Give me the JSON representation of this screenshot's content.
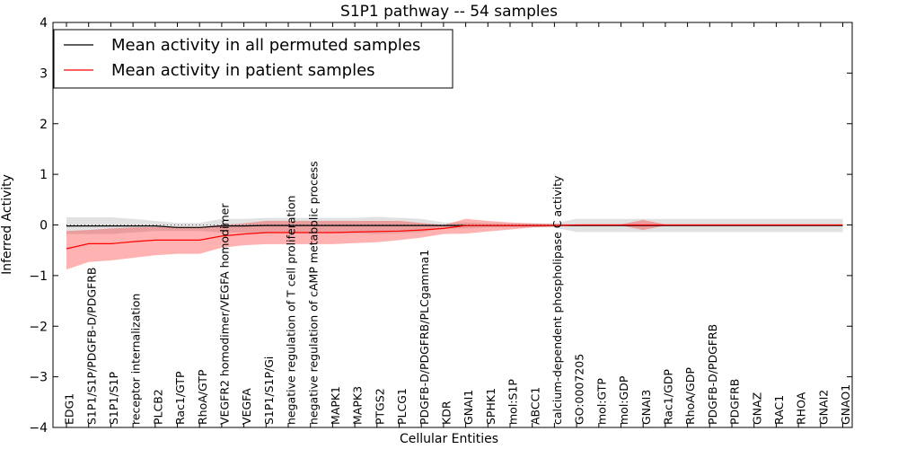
{
  "chart_data": {
    "type": "line",
    "title": "S1P1 pathway -- 54 samples",
    "xlabel": "Cellular Entities",
    "ylabel": "Inferred Activity",
    "ylim": [
      -4,
      4
    ],
    "yticks": [
      "4",
      "3",
      "2",
      "1",
      "0",
      "−1",
      "−2",
      "−3",
      "−4"
    ],
    "ytick_values": [
      4,
      3,
      2,
      1,
      0,
      -1,
      -2,
      -3,
      -4
    ],
    "grid": false,
    "legend_position": "top-left",
    "categories": [
      "EDG1",
      "S1P1/S1P/PDGFB-D/PDGFRB",
      "S1P1/S1P",
      "receptor internalization",
      "PLCB2",
      "Rac1/GTP",
      "RhoA/GTP",
      "VEGFR2 homodimer/VEGFA homodimer",
      "VEGFA",
      "S1P1/S1P/Gi",
      "negative regulation of T cell proliferation",
      "negative regulation of cAMP metabolic process",
      "MAPK1",
      "MAPK3",
      "PTGS2",
      "PLCG1",
      "PDGFB-D/PDGFRB/PLCgamma1",
      "KDR",
      "GNAI1",
      "SPHK1",
      "mol:S1P",
      "ABCC1",
      "calcium-dependent phospholipase C activity",
      "GO:0007205",
      "mol:GTP",
      "mol:GDP",
      "GNAI3",
      "Rac1/GDP",
      "RhoA/GDP",
      "PDGFB-D/PDGFRB",
      "PDGFRB",
      "GNAZ",
      "RAC1",
      "RHOA",
      "GNAI2",
      "GNAO1"
    ],
    "series": [
      {
        "name": "Mean activity in all permuted samples",
        "color": "#000000",
        "band_color": "#bdbdbd",
        "values": [
          -0.02,
          -0.02,
          -0.02,
          -0.02,
          -0.02,
          -0.05,
          -0.05,
          -0.02,
          -0.02,
          -0.01,
          -0.01,
          -0.01,
          -0.01,
          -0.01,
          -0.01,
          -0.01,
          -0.01,
          -0.01,
          -0.01,
          -0.01,
          -0.01,
          -0.01,
          -0.01,
          -0.01,
          -0.01,
          -0.01,
          -0.01,
          -0.01,
          -0.01,
          -0.01,
          -0.01,
          -0.01,
          -0.01,
          -0.01,
          -0.01,
          -0.01
        ],
        "upper": [
          0.15,
          0.15,
          0.15,
          0.12,
          0.08,
          0.04,
          0.04,
          0.12,
          0.12,
          0.14,
          0.14,
          0.14,
          0.14,
          0.14,
          0.16,
          0.14,
          0.12,
          0.05,
          0.05,
          0.03,
          0.03,
          0.03,
          0.03,
          0.12,
          0.12,
          0.12,
          0.12,
          0.12,
          0.12,
          0.12,
          0.12,
          0.12,
          0.12,
          0.12,
          0.12,
          0.12
        ],
        "lower": [
          -0.18,
          -0.18,
          -0.18,
          -0.15,
          -0.12,
          -0.12,
          -0.12,
          -0.15,
          -0.15,
          -0.16,
          -0.16,
          -0.16,
          -0.16,
          -0.16,
          -0.18,
          -0.16,
          -0.14,
          -0.07,
          -0.07,
          -0.05,
          -0.05,
          -0.05,
          -0.05,
          -0.14,
          -0.14,
          -0.14,
          -0.14,
          -0.14,
          -0.14,
          -0.14,
          -0.14,
          -0.14,
          -0.14,
          -0.14,
          -0.14,
          -0.14
        ]
      },
      {
        "name": "Mean activity in patient samples",
        "color": "#ff0000",
        "band_color": "#ff0000",
        "values": [
          -0.47,
          -0.37,
          -0.37,
          -0.33,
          -0.3,
          -0.3,
          -0.3,
          -0.22,
          -0.18,
          -0.15,
          -0.15,
          -0.15,
          -0.15,
          -0.14,
          -0.13,
          -0.12,
          -0.1,
          -0.07,
          -0.01,
          -0.01,
          -0.01,
          -0.01,
          -0.01,
          0.0,
          0.0,
          0.0,
          0.0,
          0.0,
          0.0,
          0.0,
          0.0,
          0.0,
          0.0,
          0.0,
          0.0,
          0.0
        ],
        "upper": [
          -0.12,
          -0.1,
          -0.07,
          -0.05,
          -0.04,
          -0.04,
          -0.04,
          0.0,
          0.03,
          0.08,
          0.08,
          0.08,
          0.08,
          0.08,
          0.08,
          0.08,
          0.04,
          0.0,
          0.12,
          0.08,
          0.05,
          0.03,
          0.02,
          0.01,
          0.01,
          0.01,
          0.1,
          0.01,
          0.01,
          0.01,
          0.01,
          0.01,
          0.01,
          0.01,
          0.01,
          0.01
        ],
        "lower": [
          -0.88,
          -0.73,
          -0.7,
          -0.65,
          -0.6,
          -0.57,
          -0.57,
          -0.45,
          -0.4,
          -0.38,
          -0.38,
          -0.38,
          -0.38,
          -0.36,
          -0.34,
          -0.3,
          -0.25,
          -0.18,
          -0.17,
          -0.13,
          -0.09,
          -0.05,
          -0.03,
          -0.01,
          -0.01,
          -0.01,
          -0.1,
          -0.01,
          -0.01,
          -0.01,
          -0.01,
          -0.01,
          -0.01,
          -0.01,
          -0.01,
          -0.01
        ]
      }
    ]
  }
}
